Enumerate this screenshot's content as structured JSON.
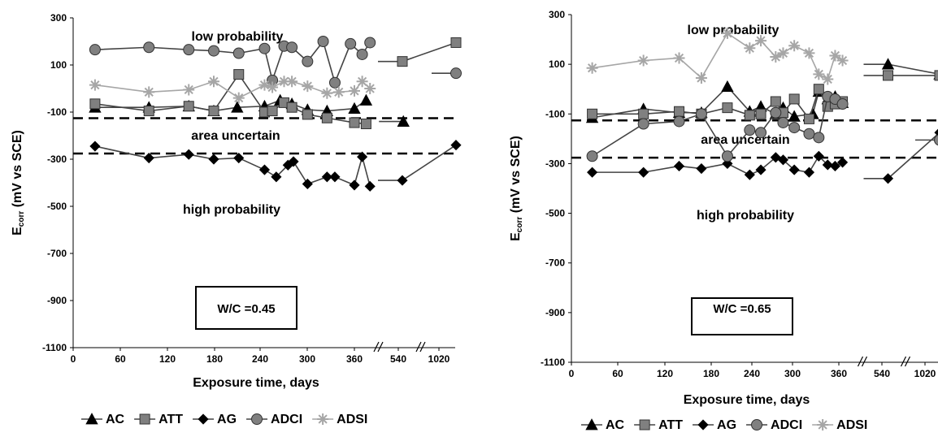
{
  "chart_data": [
    {
      "type": "line",
      "x_ticks": [
        "0",
        "60",
        "120",
        "180",
        "240",
        "300",
        "360",
        "540",
        "1020"
      ],
      "y_ticks": [
        300,
        100,
        -100,
        -300,
        -500,
        -700,
        -900,
        -1100
      ],
      "ylim": [
        -1100,
        300
      ],
      "xlabel": "Exposure time, days",
      "ylabel_main": "E",
      "ylabel_sub": "corr",
      "ylabel_rest": " (mV vs SCE)",
      "thresholds": [
        -126,
        -276
      ],
      "zones": {
        "low": "low probability",
        "uncertain": "area uncertain",
        "high": "high probability"
      },
      "box_label": "W/C =0.45",
      "series": [
        {
          "name": "AC",
          "color": "#000000",
          "marker": "triangle",
          "points": [
            [
              28,
              -80
            ],
            [
              97,
              -80
            ],
            [
              148,
              -75
            ],
            [
              180,
              -95
            ],
            [
              210,
              -80
            ],
            [
              245,
              -75
            ],
            [
              265,
              -50
            ],
            [
              280,
              -65
            ],
            [
              300,
              -90
            ],
            [
              325,
              -95
            ],
            [
              360,
              -85
            ],
            [
              375,
              -50
            ]
          ],
          "tail": [
            [
              565,
              -140
            ]
          ]
        },
        {
          "name": "ATT",
          "color": "#808080",
          "marker": "square",
          "points": [
            [
              28,
              -65
            ],
            [
              97,
              -95
            ],
            [
              148,
              -75
            ],
            [
              180,
              -95
            ],
            [
              212,
              60
            ],
            [
              245,
              -100
            ],
            [
              255,
              -95
            ],
            [
              270,
              -60
            ],
            [
              280,
              -80
            ],
            [
              300,
              -110
            ],
            [
              325,
              -125
            ],
            [
              360,
              -145
            ],
            [
              375,
              -150
            ]
          ],
          "tail": [
            [
              560,
              115
            ],
            [
              1060,
              195
            ]
          ]
        },
        {
          "name": "AG",
          "color": "#000000",
          "marker": "diamond",
          "points": [
            [
              28,
              -245
            ],
            [
              97,
              -295
            ],
            [
              148,
              -280
            ],
            [
              180,
              -300
            ],
            [
              212,
              -295
            ],
            [
              245,
              -345
            ],
            [
              260,
              -375
            ],
            [
              275,
              -325
            ],
            [
              282,
              -310
            ],
            [
              300,
              -405
            ],
            [
              325,
              -375
            ],
            [
              335,
              -375
            ],
            [
              360,
              -410
            ],
            [
              370,
              -290
            ],
            [
              380,
              -415
            ]
          ],
          "tail": [
            [
              560,
              -390
            ],
            [
              1060,
              -240
            ]
          ]
        },
        {
          "name": "ADCI",
          "color": "#808080",
          "marker": "circle",
          "points": [
            [
              28,
              165
            ],
            [
              97,
              175
            ],
            [
              148,
              165
            ],
            [
              180,
              160
            ],
            [
              212,
              150
            ],
            [
              245,
              170
            ],
            [
              255,
              35
            ],
            [
              270,
              180
            ],
            [
              280,
              175
            ],
            [
              300,
              115
            ],
            [
              320,
              200
            ],
            [
              335,
              25
            ],
            [
              355,
              190
            ],
            [
              370,
              145
            ],
            [
              380,
              195
            ]
          ],
          "tail": [
            [
              1060,
              65
            ]
          ]
        },
        {
          "name": "ADSI",
          "color": "#a6a6a6",
          "marker": "star",
          "points": [
            [
              28,
              15
            ],
            [
              97,
              -15
            ],
            [
              148,
              -5
            ],
            [
              180,
              30
            ],
            [
              212,
              -40
            ],
            [
              245,
              15
            ],
            [
              255,
              5
            ],
            [
              270,
              30
            ],
            [
              280,
              30
            ],
            [
              300,
              10
            ],
            [
              325,
              -20
            ],
            [
              340,
              -15
            ],
            [
              360,
              -10
            ],
            [
              370,
              30
            ],
            [
              380,
              0
            ]
          ],
          "tail": []
        }
      ]
    },
    {
      "type": "line",
      "x_ticks": [
        "0",
        "60",
        "120",
        "180",
        "240",
        "300",
        "360",
        "540",
        "1020"
      ],
      "y_ticks": [
        300,
        100,
        -100,
        -300,
        -500,
        -700,
        -900,
        -1100
      ],
      "ylim": [
        -1100,
        300
      ],
      "xlabel": "Exposure time, days",
      "ylabel_main": "E",
      "ylabel_sub": "corr",
      "ylabel_rest": " (mV vs SCE)",
      "thresholds": [
        -126,
        -276
      ],
      "zones": {
        "low": "low probability",
        "uncertain": "area uncertain",
        "high": "high probability"
      },
      "box_label": "W/C =0.65",
      "series": [
        {
          "name": "AC",
          "color": "#000000",
          "marker": "triangle",
          "points": [
            [
              28,
              -115
            ],
            [
              97,
              -80
            ],
            [
              145,
              -95
            ],
            [
              175,
              -95
            ],
            [
              210,
              10
            ],
            [
              240,
              -90
            ],
            [
              255,
              -70
            ],
            [
              275,
              -100
            ],
            [
              285,
              -75
            ],
            [
              300,
              -110
            ],
            [
              325,
              -100
            ],
            [
              333,
              -10
            ],
            [
              345,
              -40
            ],
            [
              355,
              -30
            ],
            [
              365,
              -55
            ]
          ],
          "tail": [
            [
              570,
              100
            ],
            [
              1060,
              60
            ]
          ]
        },
        {
          "name": "ATT",
          "color": "#808080",
          "marker": "square",
          "points": [
            [
              28,
              -100
            ],
            [
              97,
              -100
            ],
            [
              145,
              -90
            ],
            [
              175,
              -100
            ],
            [
              210,
              -75
            ],
            [
              240,
              -105
            ],
            [
              255,
              -100
            ],
            [
              275,
              -50
            ],
            [
              285,
              -95
            ],
            [
              300,
              -40
            ],
            [
              320,
              -120
            ],
            [
              333,
              0
            ],
            [
              345,
              -70
            ],
            [
              355,
              -60
            ],
            [
              365,
              -50
            ]
          ],
          "tail": [
            [
              570,
              55
            ],
            [
              1060,
              55
            ]
          ]
        },
        {
          "name": "AG",
          "color": "#000000",
          "marker": "diamond",
          "points": [
            [
              28,
              -335
            ],
            [
              97,
              -335
            ],
            [
              145,
              -310
            ],
            [
              175,
              -320
            ],
            [
              210,
              -300
            ],
            [
              240,
              -345
            ],
            [
              255,
              -325
            ],
            [
              275,
              -275
            ],
            [
              285,
              -285
            ],
            [
              300,
              -325
            ],
            [
              320,
              -335
            ],
            [
              333,
              -270
            ],
            [
              345,
              -305
            ],
            [
              355,
              -310
            ],
            [
              365,
              -295
            ]
          ],
          "tail": [
            [
              570,
              -360
            ],
            [
              1060,
              -175
            ]
          ]
        },
        {
          "name": "ADCI",
          "color": "#808080",
          "marker": "circle",
          "points": [
            [
              28,
              -270
            ],
            [
              97,
              -140
            ],
            [
              145,
              -130
            ],
            [
              175,
              -100
            ],
            [
              210,
              -270
            ],
            [
              240,
              -165
            ],
            [
              255,
              -175
            ],
            [
              275,
              -95
            ],
            [
              285,
              -135
            ],
            [
              300,
              -155
            ],
            [
              320,
              -180
            ],
            [
              333,
              -195
            ],
            [
              345,
              -30
            ],
            [
              355,
              -40
            ],
            [
              365,
              -60
            ]
          ],
          "tail": [
            [
              1060,
              -205
            ]
          ]
        },
        {
          "name": "ADSI",
          "color": "#a6a6a6",
          "marker": "star",
          "points": [
            [
              28,
              85
            ],
            [
              97,
              115
            ],
            [
              145,
              125
            ],
            [
              175,
              45
            ],
            [
              210,
              225
            ],
            [
              240,
              165
            ],
            [
              255,
              195
            ],
            [
              275,
              130
            ],
            [
              285,
              145
            ],
            [
              300,
              175
            ],
            [
              320,
              145
            ],
            [
              333,
              60
            ],
            [
              345,
              40
            ],
            [
              355,
              135
            ],
            [
              365,
              115
            ]
          ],
          "tail": []
        }
      ]
    }
  ]
}
